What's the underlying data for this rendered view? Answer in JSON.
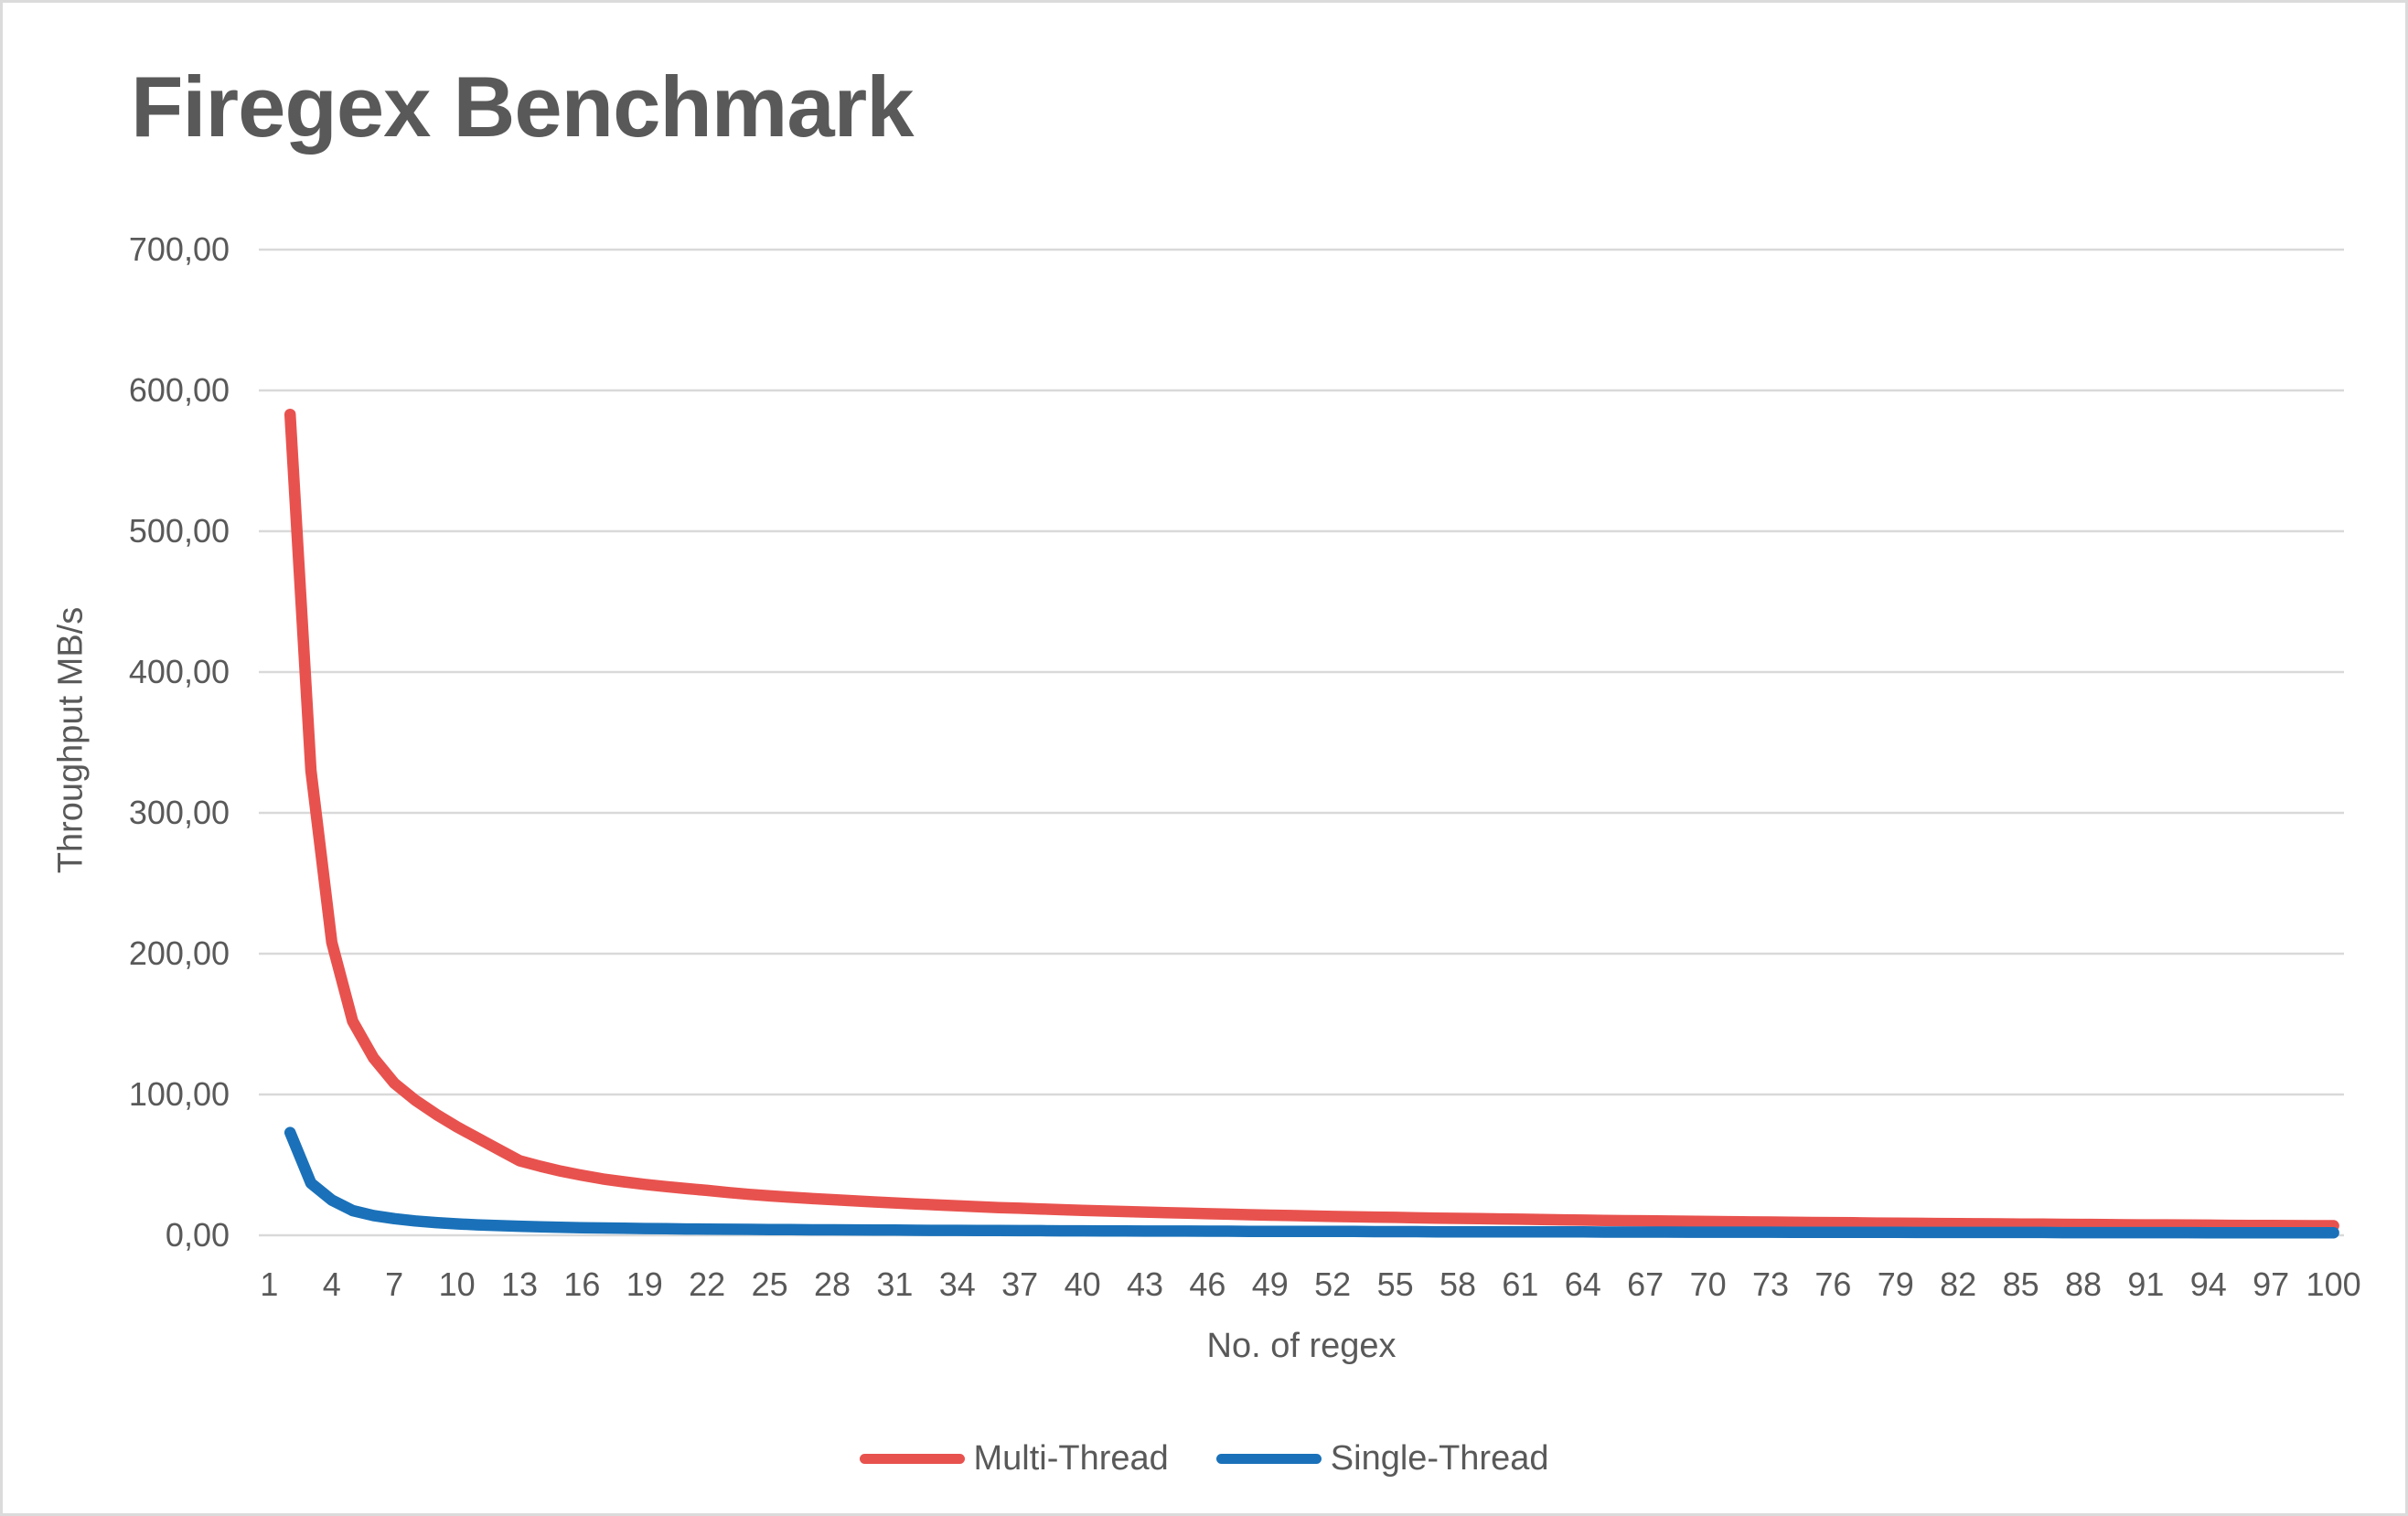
{
  "title": "Firegex Benchmark",
  "colors": {
    "multi_thread": "#E8524E",
    "single_thread": "#1A71B9",
    "gridline": "#D9D9D9",
    "axis_text": "#595959",
    "frame_border": "#DBDBDB",
    "background": "#FFFFFF"
  },
  "chart_data": {
    "type": "line",
    "title": "Firegex Benchmark",
    "xlabel": "No. of regex",
    "ylabel": "Throughput MB/s",
    "xlim": [
      1,
      100
    ],
    "ylim": [
      0,
      700
    ],
    "grid": "horizontal",
    "legend_position": "bottom-center",
    "y_tick_labels_top_to_bottom": [
      "700,00",
      "600,00",
      "500,00",
      "400,00",
      "300,00",
      "200,00",
      "100,00",
      "0,00"
    ],
    "y_tick_values_top_to_bottom": [
      700,
      600,
      500,
      400,
      300,
      200,
      100,
      0
    ],
    "x_tick_labels": [
      "1",
      "4",
      "7",
      "10",
      "13",
      "16",
      "19",
      "22",
      "25",
      "28",
      "31",
      "34",
      "37",
      "40",
      "43",
      "46",
      "49",
      "52",
      "55",
      "58",
      "61",
      "64",
      "67",
      "70",
      "73",
      "76",
      "79",
      "82",
      "85",
      "88",
      "91",
      "94",
      "97",
      "100"
    ],
    "x_tick_values": [
      1,
      4,
      7,
      10,
      13,
      16,
      19,
      22,
      25,
      28,
      31,
      34,
      37,
      40,
      43,
      46,
      49,
      52,
      55,
      58,
      61,
      64,
      67,
      70,
      73,
      76,
      79,
      82,
      85,
      88,
      91,
      94,
      97,
      100
    ],
    "x": [
      2,
      3,
      4,
      5,
      6,
      7,
      8,
      9,
      10,
      11,
      12,
      13,
      14,
      15,
      16,
      17,
      18,
      19,
      20,
      21,
      22,
      23,
      24,
      25,
      26,
      27,
      28,
      29,
      30,
      31,
      32,
      33,
      34,
      35,
      36,
      37,
      38,
      39,
      40,
      41,
      42,
      43,
      44,
      45,
      46,
      47,
      48,
      49,
      50,
      51,
      52,
      53,
      54,
      55,
      56,
      57,
      58,
      59,
      60,
      61,
      62,
      63,
      64,
      65,
      66,
      67,
      68,
      69,
      70,
      71,
      72,
      73,
      74,
      75,
      76,
      77,
      78,
      79,
      80,
      81,
      82,
      83,
      84,
      85,
      86,
      87,
      88,
      89,
      90,
      91,
      92,
      93,
      94,
      95,
      96,
      97,
      98,
      99,
      100
    ],
    "series": [
      {
        "name": "Multi-Thread",
        "color": "#E8524E",
        "values": [
          583,
          330,
          208,
          152,
          126,
          108,
          96,
          86,
          77,
          69,
          61,
          53,
          49,
          45.5,
          42.6,
          40,
          38,
          36.2,
          34.6,
          33.2,
          31.9,
          30.4,
          29.1,
          28,
          27,
          26.1,
          25.3,
          24.5,
          23.7,
          23,
          22.3,
          21.6,
          21,
          20.3,
          19.7,
          19.2,
          18.7,
          18.2,
          17.7,
          17.3,
          16.9,
          16.5,
          16.1,
          15.7,
          15.3,
          15,
          14.6,
          14.3,
          14,
          13.7,
          13.4,
          13.2,
          12.9,
          12.7,
          12.4,
          12.2,
          12,
          11.8,
          11.6,
          11.4,
          11.2,
          11,
          10.8,
          10.6,
          10.4,
          10.3,
          10.1,
          10,
          9.8,
          9.7,
          9.5,
          9.4,
          9.2,
          9.1,
          9,
          8.9,
          8.7,
          8.6,
          8.5,
          8.4,
          8.3,
          8.2,
          8.1,
          8,
          7.9,
          7.8,
          7.7,
          7.6,
          7.5,
          7.4,
          7.4,
          7.3,
          7.2,
          7.1,
          7,
          7,
          6.9,
          6.8,
          6.8
        ]
      },
      {
        "name": "Single-Thread",
        "color": "#1A71B9",
        "values": [
          73,
          37,
          25,
          17.5,
          14,
          11.8,
          10.2,
          9,
          8.1,
          7.4,
          6.9,
          6.4,
          6,
          5.7,
          5.4,
          5.2,
          5,
          4.8,
          4.7,
          4.5,
          4.4,
          4.3,
          4.2,
          4.1,
          4,
          3.9,
          3.9,
          3.8,
          3.7,
          3.7,
          3.6,
          3.5,
          3.5,
          3.4,
          3.4,
          3.3,
          3.3,
          3.2,
          3.2,
          3.1,
          3.1,
          3,
          3,
          3,
          2.9,
          2.9,
          2.8,
          2.8,
          2.8,
          2.7,
          2.7,
          2.7,
          2.6,
          2.6,
          2.6,
          2.5,
          2.5,
          2.5,
          2.5,
          2.4,
          2.4,
          2.4,
          2.4,
          2.3,
          2.3,
          2.3,
          2.3,
          2.2,
          2.2,
          2.2,
          2.2,
          2.2,
          2.1,
          2.1,
          2.1,
          2.1,
          2.1,
          2.1,
          2,
          2,
          2,
          2,
          2,
          2,
          2,
          1.9,
          1.9,
          1.9,
          1.9,
          1.9,
          1.9,
          1.9,
          1.8,
          1.8,
          1.8,
          1.8,
          1.8,
          1.8,
          1.8
        ]
      }
    ]
  }
}
